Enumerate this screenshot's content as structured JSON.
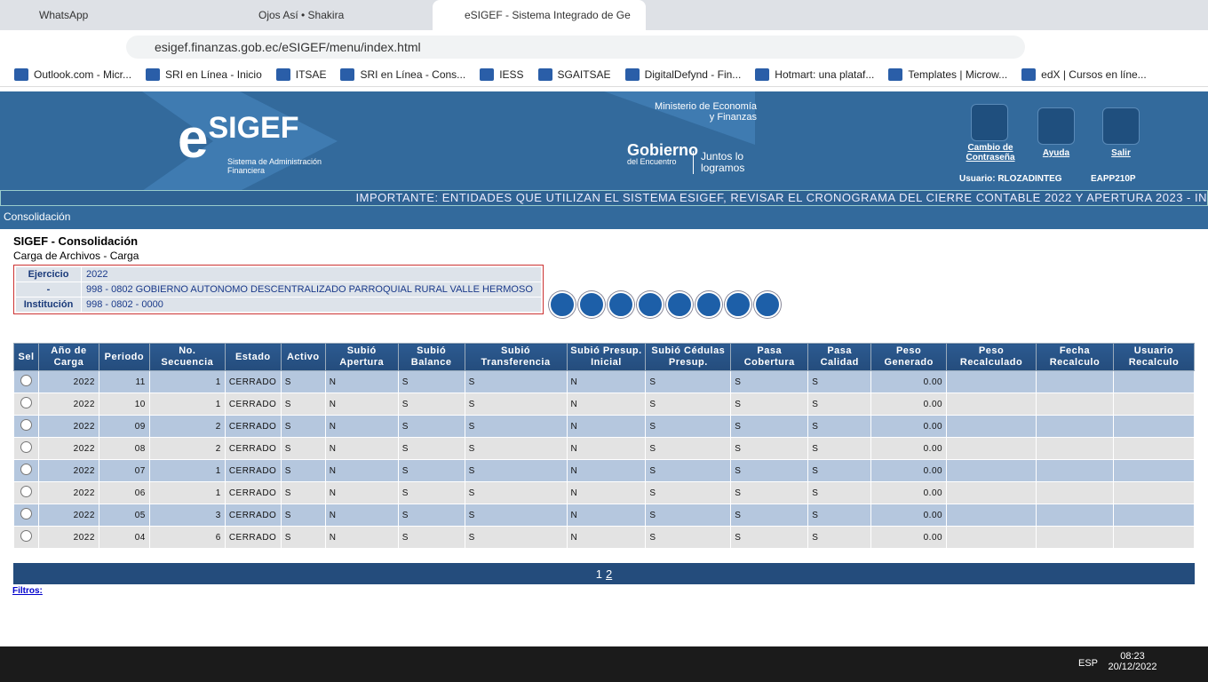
{
  "browser": {
    "tabs": [
      "WhatsApp",
      "Ojos Así • Shakira",
      "eSIGEF - Sistema Integrado de Ge"
    ],
    "url": "esigef.finanzas.gob.ec/eSIGEF/menu/index.html",
    "bookmarks": [
      "Outlook.com - Micr...",
      "SRI en Línea - Inicio",
      "ITSAE",
      "SRI en Línea - Cons...",
      "IESS",
      "SGAITSAE",
      "DigitalDefynd - Fin...",
      "Hotmart: una plataf...",
      "Templates | Microw...",
      "edX | Cursos en líne..."
    ]
  },
  "header": {
    "logo_e": "e",
    "logo": "SIGEF",
    "logo_sub": "Sistema de Administración Financiera",
    "ministry": "Ministerio de Economía y Finanzas",
    "gov": "Gobierno",
    "gov_sub": "del Encuentro",
    "slogan": "Juntos lo logramos",
    "links": [
      "Cambio de Contraseña",
      "Ayuda",
      "Salir"
    ],
    "user": "Usuario: RLOZADINTEG",
    "station": "EAPP210P",
    "ticker": "IMPORTANTE: ENTIDADES QUE UTILIZAN EL SISTEMA ESIGEF, REVISAR EL CRONOGRAMA DEL CIERRE CONTABLE 2022 Y APERTURA 2023 - IN"
  },
  "breadcrumb": "Consolidación",
  "page": {
    "title": "SIGEF - Consolidación",
    "subtitle": "Carga de Archivos - Carga",
    "info": [
      [
        "Ejercicio",
        "2022"
      ],
      [
        "-",
        "998 - 0802 GOBIERNO AUTONOMO DESCENTRALIZADO PARROQUIAL RURAL VALLE HERMOSO"
      ],
      [
        "Institución",
        "998 - 0802 - 0000"
      ]
    ]
  },
  "table": {
    "headers": [
      "Sel",
      "Año de Carga",
      "Periodo",
      "No. Secuencia",
      "Estado",
      "Activo",
      "Subió Apertura",
      "Subió Balance",
      "Subió Transferencia",
      "Subió Presup. Inicial",
      "Subió Cédulas Presup.",
      "Pasa Cobertura",
      "Pasa Calidad",
      "Peso Generado",
      "Peso Recalculado",
      "Fecha Recalculo",
      "Usuario Recalculo"
    ],
    "rows": [
      [
        "2022",
        "11",
        "1",
        "CERRADO",
        "S",
        "N",
        "S",
        "S",
        "N",
        "S",
        "S",
        "S",
        "0.00",
        null,
        null,
        null
      ],
      [
        "2022",
        "10",
        "1",
        "CERRADO",
        "S",
        "N",
        "S",
        "S",
        "N",
        "S",
        "S",
        "S",
        "0.00",
        null,
        null,
        null
      ],
      [
        "2022",
        "09",
        "2",
        "CERRADO",
        "S",
        "N",
        "S",
        "S",
        "N",
        "S",
        "S",
        "S",
        "0.00",
        null,
        null,
        null
      ],
      [
        "2022",
        "08",
        "2",
        "CERRADO",
        "S",
        "N",
        "S",
        "S",
        "N",
        "S",
        "S",
        "S",
        "0.00",
        null,
        null,
        null
      ],
      [
        "2022",
        "07",
        "1",
        "CERRADO",
        "S",
        "N",
        "S",
        "S",
        "N",
        "S",
        "S",
        "S",
        "0.00",
        null,
        null,
        null
      ],
      [
        "2022",
        "06",
        "1",
        "CERRADO",
        "S",
        "N",
        "S",
        "S",
        "N",
        "S",
        "S",
        "S",
        "0.00",
        null,
        null,
        null
      ],
      [
        "2022",
        "05",
        "3",
        "CERRADO",
        "S",
        "N",
        "S",
        "S",
        "N",
        "S",
        "S",
        "S",
        "0.00",
        null,
        null,
        null
      ],
      [
        "2022",
        "04",
        "6",
        "CERRADO",
        "S",
        "N",
        "S",
        "S",
        "N",
        "S",
        "S",
        "S",
        "0.00",
        null,
        null,
        null
      ]
    ]
  },
  "pagination": [
    "1",
    "2"
  ],
  "filters": "Filtros:",
  "taskbar": {
    "lang": "ESP",
    "time": "08:23",
    "date": "20/12/2022"
  }
}
